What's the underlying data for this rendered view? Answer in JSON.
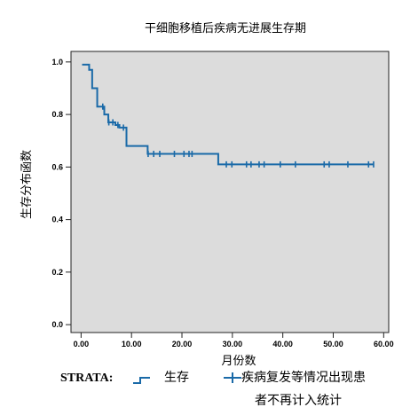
{
  "chart_data": {
    "type": "line",
    "title": "干细胞移植后疾病无进展生存期",
    "xlabel": "月份数",
    "ylabel": "生存分布函数",
    "xlim": [
      -2,
      61
    ],
    "ylim": [
      -0.03,
      1.04
    ],
    "xticks": [
      "0.00",
      "10.00",
      "20.00",
      "30.00",
      "40.00",
      "50.00",
      "60.00"
    ],
    "xtick_values": [
      0,
      10,
      20,
      30,
      40,
      50,
      60
    ],
    "yticks": [
      "0.0",
      "0.2",
      "0.4",
      "0.6",
      "0.8",
      "1.0"
    ],
    "ytick_values": [
      0.0,
      0.2,
      0.4,
      0.6,
      0.8,
      1.0
    ],
    "grid": false,
    "background_color": "#dcdcdc",
    "line_color": "#1a6aa8",
    "series": [
      {
        "name": "生存",
        "steps": [
          [
            0.2,
            0.99
          ],
          [
            1.6,
            0.97
          ],
          [
            2.2,
            0.9
          ],
          [
            3.2,
            0.83
          ],
          [
            4.6,
            0.8
          ],
          [
            5.4,
            0.77
          ],
          [
            6.8,
            0.76
          ],
          [
            7.6,
            0.75
          ],
          [
            9.0,
            0.68
          ],
          [
            13.2,
            0.65
          ],
          [
            27.2,
            0.61
          ],
          [
            58.0,
            0.61
          ]
        ],
        "censored_x": [
          4.3,
          5.5,
          6.3,
          7.3,
          8.4,
          13.3,
          14.4,
          15.6,
          18.5,
          20.4,
          21.4,
          22.0,
          28.8,
          29.9,
          32.8,
          33.7,
          35.3,
          36.3,
          39.5,
          42.5,
          48.2,
          49.2,
          52.9,
          57.0,
          58.0
        ]
      }
    ],
    "legend": {
      "position": "bottom",
      "strata_label": "STRATA:",
      "entries": [
        "生存",
        "疾病复发等情况出现患",
        "者不再计入统计"
      ]
    }
  }
}
